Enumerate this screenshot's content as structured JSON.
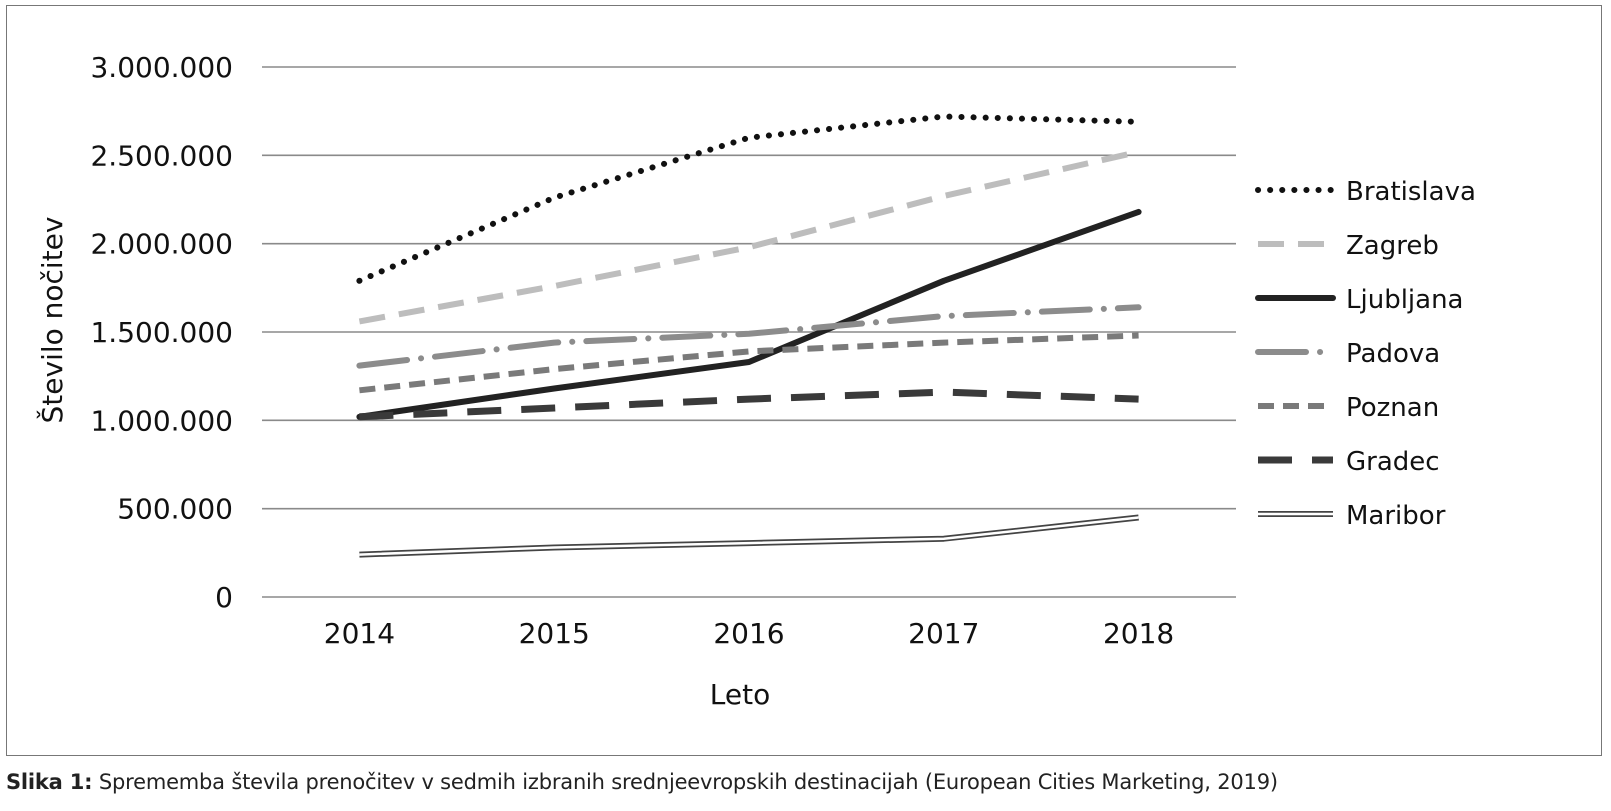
{
  "chart_data": {
    "type": "line",
    "xlabel": "Leto",
    "ylabel": "Število nočitev",
    "categories": [
      "2014",
      "2015",
      "2016",
      "2017",
      "2018"
    ],
    "ylim": [
      0,
      3000000
    ],
    "yticks": [
      0,
      500000,
      1000000,
      1500000,
      2000000,
      2500000,
      3000000
    ],
    "ytick_labels": [
      "0",
      "500.000",
      "1.000.000",
      "1.500.000",
      "2.000.000",
      "2.500.000",
      "3.000.000"
    ],
    "grid": "horizontal",
    "legend_position": "right",
    "series": [
      {
        "name": "Bratislava",
        "values": [
          1790000,
          2260000,
          2600000,
          2720000,
          2690000
        ],
        "color": "#111111",
        "style": "dotted"
      },
      {
        "name": "Zagreb",
        "values": [
          1560000,
          1760000,
          1980000,
          2270000,
          2520000
        ],
        "color": "#bdbdbd",
        "style": "dashed"
      },
      {
        "name": "Ljubljana",
        "values": [
          1020000,
          1180000,
          1330000,
          1790000,
          2180000
        ],
        "color": "#222222",
        "style": "solid"
      },
      {
        "name": "Padova",
        "values": [
          1310000,
          1440000,
          1490000,
          1590000,
          1640000
        ],
        "color": "#8c8c8c",
        "style": "dashdot"
      },
      {
        "name": "Poznan",
        "values": [
          1170000,
          1290000,
          1390000,
          1440000,
          1480000
        ],
        "color": "#7a7a7a",
        "style": "shortdash"
      },
      {
        "name": "Gradec",
        "values": [
          1020000,
          1070000,
          1120000,
          1160000,
          1120000
        ],
        "color": "#3a3a3a",
        "style": "longdash"
      },
      {
        "name": "Maribor",
        "values": [
          240000,
          280000,
          305000,
          330000,
          450000
        ],
        "color": "#444444",
        "style": "double"
      }
    ]
  },
  "caption": {
    "label": "Slika 1:",
    "text": " Sprememba števila prenočitev v sedmih izbranih srednjeevropskih destinacijah (European Cities Marketing, 2019)"
  }
}
